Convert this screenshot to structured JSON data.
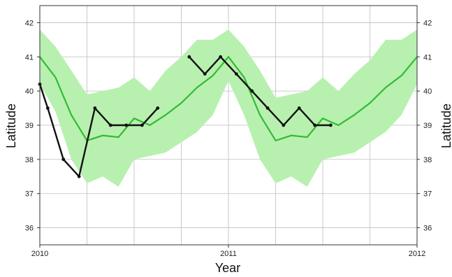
{
  "chart_data": {
    "type": "line",
    "xlabel": "Year",
    "ylabel": "Latitude",
    "ylabel_right": "Latitude",
    "xlim": [
      2010,
      2012
    ],
    "ylim": [
      35.5,
      42.5
    ],
    "x_ticks": [
      2010,
      2011,
      2012
    ],
    "x_tick_labels": [
      "2010",
      "2011",
      "2012"
    ],
    "y_ticks": [
      36,
      37,
      38,
      39,
      40,
      41,
      42
    ],
    "y_tick_labels": [
      "36",
      "37",
      "38",
      "39",
      "40",
      "41",
      "42"
    ],
    "grid": true,
    "colors": {
      "band": "#b8f0b0",
      "mean_line": "#33bb33",
      "observed_line": "#111111",
      "grid": "#bdbdbd",
      "frame": "#333333"
    },
    "band": {
      "x": [
        2010.0,
        2010.083,
        2010.167,
        2010.25,
        2010.333,
        2010.417,
        2010.5,
        2010.583,
        2010.667,
        2010.75,
        2010.833,
        2010.917,
        2011.0,
        2011.083,
        2011.167,
        2011.25,
        2011.333,
        2011.417,
        2011.5,
        2011.583,
        2011.667,
        2011.75,
        2011.833,
        2011.917,
        2012.0
      ],
      "upper": [
        41.8,
        41.3,
        40.6,
        39.9,
        40.0,
        40.1,
        40.4,
        40.0,
        40.6,
        41.0,
        41.5,
        41.5,
        41.8,
        41.3,
        40.6,
        39.8,
        39.9,
        40.0,
        40.4,
        40.0,
        40.5,
        40.9,
        41.5,
        41.5,
        41.8
      ],
      "lower": [
        40.2,
        39.4,
        38.0,
        37.3,
        37.5,
        37.2,
        38.0,
        38.1,
        38.2,
        38.5,
        38.8,
        39.3,
        40.3,
        39.3,
        38.0,
        37.3,
        37.5,
        37.2,
        38.0,
        38.1,
        38.2,
        38.5,
        38.8,
        39.3,
        40.2
      ]
    },
    "series": [
      {
        "x": [
          2010.0,
          2010.083,
          2010.167,
          2010.25,
          2010.333,
          2010.417,
          2010.5,
          2010.583,
          2010.667,
          2010.75,
          2010.833,
          2010.917,
          2011.0,
          2011.083,
          2011.167,
          2011.25,
          2011.333,
          2011.417,
          2011.5,
          2011.583,
          2011.667,
          2011.75,
          2011.833,
          2011.917,
          2012.0
        ],
        "values": [
          41.0,
          40.4,
          39.3,
          38.55,
          38.7,
          38.65,
          39.2,
          39.0,
          39.3,
          39.65,
          40.1,
          40.45,
          41.0,
          40.4,
          39.3,
          38.55,
          38.7,
          38.65,
          39.2,
          39.0,
          39.3,
          39.65,
          40.1,
          40.45,
          41.0
        ]
      },
      {
        "segments": [
          {
            "x": [
              2010.0,
              2010.042,
              2010.125,
              2010.208,
              2010.292,
              2010.375,
              2010.458,
              2010.542,
              2010.625
            ],
            "values": [
              40.2,
              39.5,
              38.0,
              37.5,
              39.5,
              39.0,
              39.0,
              39.0,
              39.5
            ]
          },
          {
            "x": [
              2010.792,
              2010.875,
              2010.958,
              2011.042,
              2011.125,
              2011.208,
              2011.292,
              2011.375,
              2011.458,
              2011.542
            ],
            "values": [
              41.0,
              40.5,
              41.0,
              40.5,
              40.0,
              39.5,
              39.0,
              39.5,
              39.0,
              39.0
            ]
          }
        ]
      }
    ]
  }
}
